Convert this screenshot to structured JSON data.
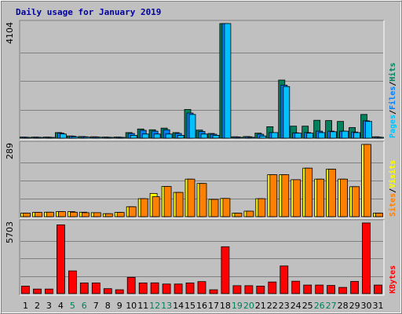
{
  "colors": {
    "background": "#c0c0c0",
    "grid": "#808080",
    "hits": "#00805c",
    "files": "#0080ff",
    "pages": "#00c0ff",
    "visits": "#ffff00",
    "sites": "#ff8000",
    "kbytes": "#ff0000",
    "title": "#0000a0",
    "weekend_day": "#00805c"
  },
  "chart_data": {
    "type": "bar",
    "title": "Daily usage for January 2019",
    "days": [
      "1",
      "2",
      "3",
      "4",
      "5",
      "6",
      "7",
      "8",
      "9",
      "10",
      "11",
      "12",
      "13",
      "14",
      "15",
      "16",
      "17",
      "18",
      "19",
      "20",
      "21",
      "22",
      "23",
      "24",
      "25",
      "26",
      "27",
      "28",
      "29",
      "30",
      "31"
    ],
    "weekend_days": [
      "5",
      "6",
      "12",
      "13",
      "19",
      "20",
      "26",
      "27"
    ],
    "panels": [
      {
        "id": "hits_files_pages",
        "ymax": 4104,
        "ymax_label": "4104",
        "axis_label_parts": [
          {
            "text": "Pages",
            "color": "#00c0ff"
          },
          {
            "text": "/",
            "color": "#000000"
          },
          {
            "text": "Files",
            "color": "#0080ff"
          },
          {
            "text": "/",
            "color": "#000000"
          },
          {
            "text": "Hits",
            "color": "#00805c"
          }
        ],
        "series": [
          {
            "name": "Hits",
            "color": "#00805c",
            "values": [
              40,
              40,
              40,
              200,
              80,
              60,
              50,
              40,
              40,
              200,
              330,
              300,
              360,
              200,
              1030,
              290,
              170,
              4104,
              50,
              60,
              180,
              410,
              2080,
              430,
              430,
              640,
              630,
              600,
              380,
              850,
              50
            ]
          },
          {
            "name": "Files",
            "color": "#0080ff",
            "values": [
              35,
              35,
              35,
              180,
              70,
              50,
              45,
              35,
              35,
              170,
              280,
              250,
              300,
              170,
              900,
              240,
              140,
              4104,
              45,
              50,
              140,
              200,
              1900,
              190,
              200,
              250,
              250,
              250,
              220,
              620,
              40
            ]
          },
          {
            "name": "Pages",
            "color": "#00c0ff",
            "values": [
              25,
              25,
              25,
              150,
              50,
              40,
              35,
              25,
              25,
              100,
              150,
              150,
              150,
              100,
              850,
              150,
              100,
              4104,
              30,
              30,
              80,
              200,
              1850,
              180,
              180,
              200,
              230,
              250,
              200,
              600,
              30
            ]
          }
        ]
      },
      {
        "id": "sites_visits",
        "ymax": 289,
        "ymax_label": "289",
        "axis_label_parts": [
          {
            "text": "Sites",
            "color": "#ff8000"
          },
          {
            "text": "/",
            "color": "#000000"
          },
          {
            "text": "Visits",
            "color": "#ffff00"
          }
        ],
        "series": [
          {
            "name": "Visits",
            "color": "#ffff00",
            "values": [
              14,
              17,
              18,
              20,
              20,
              18,
              16,
              12,
              17,
              40,
              72,
              93,
              121,
              97,
              150,
              133,
              69,
              73,
              14,
              22,
              72,
              168,
              168,
              148,
              194,
              150,
              190,
              150,
              120,
              289,
              14
            ]
          },
          {
            "name": "Sites",
            "color": "#ff8000",
            "values": [
              14,
              17,
              18,
              20,
              18,
              16,
              16,
              12,
              17,
              40,
              72,
              80,
              121,
              97,
              150,
              133,
              69,
              73,
              14,
              22,
              72,
              168,
              168,
              148,
              194,
              150,
              190,
              150,
              120,
              289,
              14
            ]
          }
        ]
      },
      {
        "id": "kbytes",
        "ymax": 5703,
        "ymax_label": "5703",
        "axis_label_parts": [
          {
            "text": "KBytes",
            "color": "#ff0000"
          }
        ],
        "series": [
          {
            "name": "KBytes",
            "color": "#ff0000",
            "values": [
              600,
              370,
              370,
              5550,
              1830,
              860,
              860,
              400,
              310,
              1310,
              860,
              870,
              770,
              770,
              860,
              970,
              310,
              3780,
              640,
              640,
              610,
              940,
              2230,
              1000,
              690,
              690,
              660,
              500,
              980,
              5703,
              690
            ]
          }
        ]
      }
    ]
  }
}
